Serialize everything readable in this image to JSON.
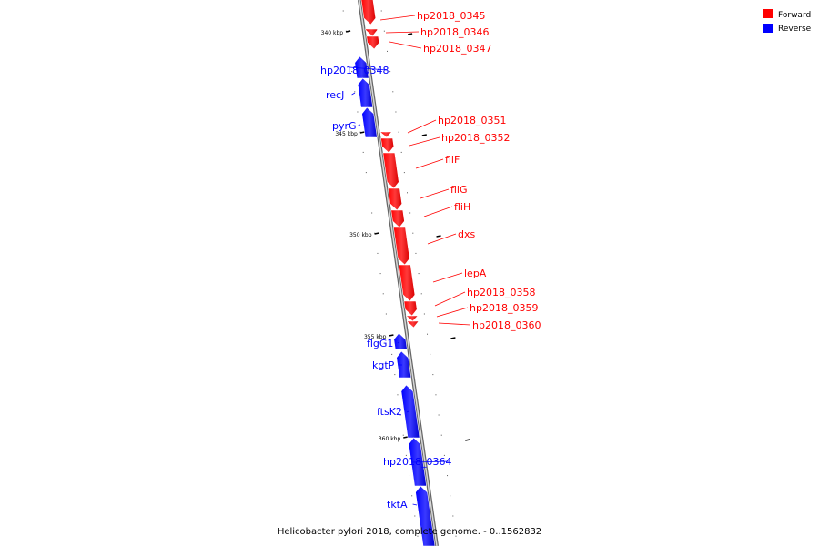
{
  "title": "Helicobacter pylori 2018, complete genome. - 0..1562832",
  "colors": {
    "forward": "#ff0000",
    "reverse": "#0000ff",
    "backbone": "#8c8c8c"
  },
  "legend": [
    {
      "label": "Forward",
      "color": "#ff0000"
    },
    {
      "label": "Reverse",
      "color": "#0000ff"
    }
  ],
  "ticks": {
    "major": [
      "340 kbp",
      "345 kbp",
      "350 kbp",
      "355 kbp",
      "360 kbp"
    ]
  },
  "features": [
    {
      "name": "hp2018_0345",
      "strand": "forward"
    },
    {
      "name": "hp2018_0346",
      "strand": "forward"
    },
    {
      "name": "hp2018_0347",
      "strand": "forward"
    },
    {
      "name": "hp2018_0348",
      "strand": "reverse"
    },
    {
      "name": "recJ",
      "strand": "reverse"
    },
    {
      "name": "pyrG",
      "strand": "reverse"
    },
    {
      "name": "hp2018_0351",
      "strand": "forward"
    },
    {
      "name": "hp2018_0352",
      "strand": "forward"
    },
    {
      "name": "fliF",
      "strand": "forward"
    },
    {
      "name": "fliG",
      "strand": "forward"
    },
    {
      "name": "fliH",
      "strand": "forward"
    },
    {
      "name": "dxs",
      "strand": "forward"
    },
    {
      "name": "lepA",
      "strand": "forward"
    },
    {
      "name": "hp2018_0358",
      "strand": "forward"
    },
    {
      "name": "hp2018_0359",
      "strand": "forward"
    },
    {
      "name": "hp2018_0360",
      "strand": "forward"
    },
    {
      "name": "flgG1",
      "strand": "reverse"
    },
    {
      "name": "kgtP",
      "strand": "reverse"
    },
    {
      "name": "ftsK2",
      "strand": "reverse"
    },
    {
      "name": "hp2018_0364",
      "strand": "reverse"
    },
    {
      "name": "tktA",
      "strand": "reverse"
    }
  ]
}
